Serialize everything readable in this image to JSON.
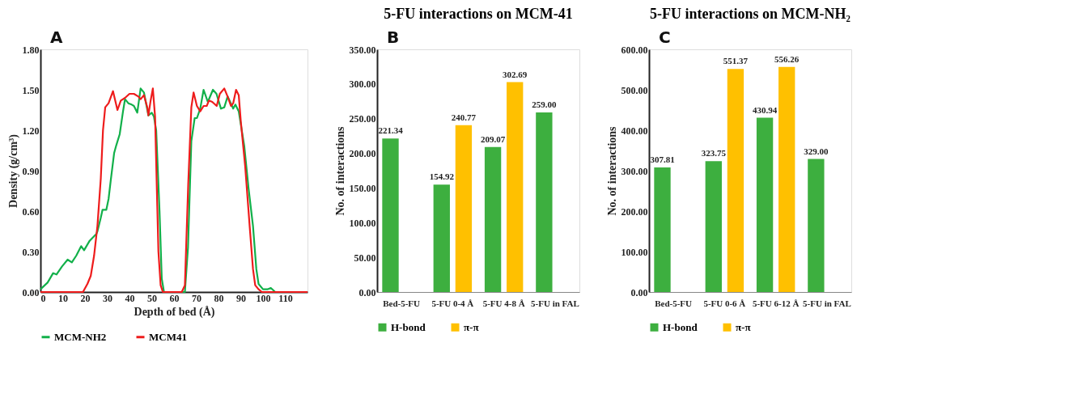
{
  "chart_data": [
    {
      "type": "line",
      "annotations": [
        "A"
      ],
      "xlabel": "Depth of bed (Å)",
      "ylabel": "Density (g/cm³)",
      "legend": "bottom",
      "grid": false,
      "xlim": [
        0,
        120
      ],
      "xticks": [
        0,
        10,
        20,
        30,
        40,
        50,
        60,
        70,
        80,
        90,
        100,
        110
      ],
      "ylim": [
        0,
        1.8
      ],
      "yticks": [
        {
          "value": 0,
          "label": "0.00"
        },
        {
          "value": 0.3,
          "label": "0.30"
        },
        {
          "value": 0.6,
          "label": "0.60"
        },
        {
          "value": 0.9,
          "label": "0.90"
        },
        {
          "value": 1.2,
          "label": "1.20"
        },
        {
          "value": 1.5,
          "label": "1.50"
        },
        {
          "value": 1.8,
          "label": "1.80"
        }
      ],
      "series": [
        {
          "name": "MCM-NH2",
          "color": "#12b04a",
          "x": [
            0,
            3.2,
            5.7,
            7.2,
            9.7,
            12.2,
            14.1,
            16.1,
            18.3,
            19.6,
            22.1,
            25.1,
            25.6,
            27.1,
            27.9,
            29.6,
            30.6,
            31.6,
            33.1,
            34.1,
            35.6,
            37.1,
            38,
            39.5,
            41,
            42,
            43.5,
            45,
            46.5,
            48.5,
            50,
            51,
            52,
            53.5,
            54.5,
            55.5,
            64.9,
            66.3,
            67.8,
            69.3,
            70.3,
            71.8,
            73.3,
            75.2,
            77.5,
            79.1,
            81.1,
            82.6,
            84.1,
            86.1,
            86.6,
            87.6,
            89.1,
            91.6,
            93.5,
            95.5,
            97,
            98,
            100,
            102,
            103.5,
            105.5,
            120
          ],
          "values": [
            0.02,
            0.07,
            0.14,
            0.13,
            0.19,
            0.24,
            0.22,
            0.27,
            0.34,
            0.31,
            0.38,
            0.43,
            0.45,
            0.55,
            0.61,
            0.61,
            0.69,
            0.83,
            1.03,
            1.09,
            1.17,
            1.34,
            1.43,
            1.4,
            1.39,
            1.38,
            1.33,
            1.51,
            1.48,
            1.31,
            1.33,
            1.3,
            1.2,
            0.6,
            0.1,
            0,
            0,
            0.33,
            1.12,
            1.29,
            1.29,
            1.36,
            1.5,
            1.41,
            1.5,
            1.47,
            1.36,
            1.37,
            1.45,
            1.38,
            1.36,
            1.39,
            1.34,
            1.08,
            0.77,
            0.49,
            0.17,
            0.06,
            0.02,
            0.02,
            0.03,
            0,
            0
          ]
        },
        {
          "name": "MCM41",
          "color": "#ee1c1c",
          "x": [
            0,
            19.1,
            21.1,
            22.6,
            24.1,
            25.6,
            27.1,
            28.1,
            29.1,
            30.6,
            32.6,
            34.6,
            36.1,
            38,
            40,
            42,
            44,
            45,
            46.5,
            48,
            48.5,
            49.5,
            50.5,
            51.5,
            53,
            54,
            55,
            63.5,
            64.9,
            66.4,
            67.8,
            68.8,
            70.3,
            71.8,
            73.3,
            74.7,
            75.7,
            77.2,
            79.2,
            80.6,
            82.6,
            84.1,
            85.6,
            86.6,
            87.9,
            89.1,
            90,
            92,
            94,
            95.5,
            96.5,
            98,
            99.5,
            120
          ],
          "values": [
            0,
            0,
            0.06,
            0.12,
            0.27,
            0.49,
            0.84,
            1.2,
            1.37,
            1.4,
            1.49,
            1.35,
            1.42,
            1.44,
            1.47,
            1.47,
            1.45,
            1.43,
            1.46,
            1.37,
            1.31,
            1.42,
            1.51,
            1.3,
            0.3,
            0.05,
            0,
            0,
            0.05,
            0.8,
            1.37,
            1.48,
            1.38,
            1.34,
            1.38,
            1.38,
            1.42,
            1.41,
            1.38,
            1.47,
            1.51,
            1.45,
            1.38,
            1.4,
            1.5,
            1.46,
            1.27,
            0.93,
            0.49,
            0.17,
            0.05,
            0.02,
            0,
            0
          ]
        }
      ]
    },
    {
      "type": "bar",
      "annotations": [
        "B"
      ],
      "title": "5-FU interactions on MCM-41",
      "ylabel": "No. of interactions",
      "legend": "bottom",
      "grid": false,
      "categories": [
        "Bed-5-FU",
        "5-FU 0-4 Å",
        "5-FU 4-8 Å",
        "5-FU  in FAL"
      ],
      "ylim": [
        0,
        350
      ],
      "yticks": [
        {
          "value": 0,
          "label": "0.00"
        },
        {
          "value": 50,
          "label": "50.00"
        },
        {
          "value": 100,
          "label": "100.00"
        },
        {
          "value": 150,
          "label": "150.00"
        },
        {
          "value": 200,
          "label": "200.00"
        },
        {
          "value": 250,
          "label": "250.00"
        },
        {
          "value": 300,
          "label": "300.00"
        },
        {
          "value": 350,
          "label": "350.00"
        }
      ],
      "series": [
        {
          "name": "H-bond",
          "color": "#3daf3f",
          "values": [
            221.34,
            154.92,
            209.07,
            259.0
          ],
          "value_labels": [
            "221.34",
            "154.92",
            "209.07",
            "259.00"
          ]
        },
        {
          "name": "π-π",
          "color": "#ffc000",
          "values": [
            null,
            240.77,
            302.69,
            null
          ],
          "value_labels": [
            null,
            "240.77",
            "302.69",
            null
          ]
        }
      ]
    },
    {
      "type": "bar",
      "annotations": [
        "C"
      ],
      "title": "5-FU interactions on MCM-NH₂",
      "ylabel": "No. of interactions",
      "legend": "bottom",
      "grid": false,
      "categories": [
        "Bed-5-FU",
        "5-FU 0-6 Å",
        "5-FU 6-12 Å",
        "5-FU  in FAL"
      ],
      "ylim": [
        0,
        600
      ],
      "yticks": [
        {
          "value": 0,
          "label": "0.00"
        },
        {
          "value": 100,
          "label": "100.00"
        },
        {
          "value": 200,
          "label": "200.00"
        },
        {
          "value": 300,
          "label": "300.00"
        },
        {
          "value": 400,
          "label": "400.00"
        },
        {
          "value": 500,
          "label": "500.00"
        },
        {
          "value": 600,
          "label": "600.00"
        }
      ],
      "series": [
        {
          "name": "H-bond",
          "color": "#3daf3f",
          "values": [
            307.81,
            323.75,
            430.94,
            329.0
          ],
          "value_labels": [
            "307.81",
            "323.75",
            "430.94",
            "329.00"
          ]
        },
        {
          "name": "π-π",
          "color": "#ffc000",
          "values": [
            null,
            551.37,
            556.26,
            null
          ],
          "value_labels": [
            null,
            "551.37",
            "556.26",
            null
          ]
        }
      ]
    }
  ]
}
